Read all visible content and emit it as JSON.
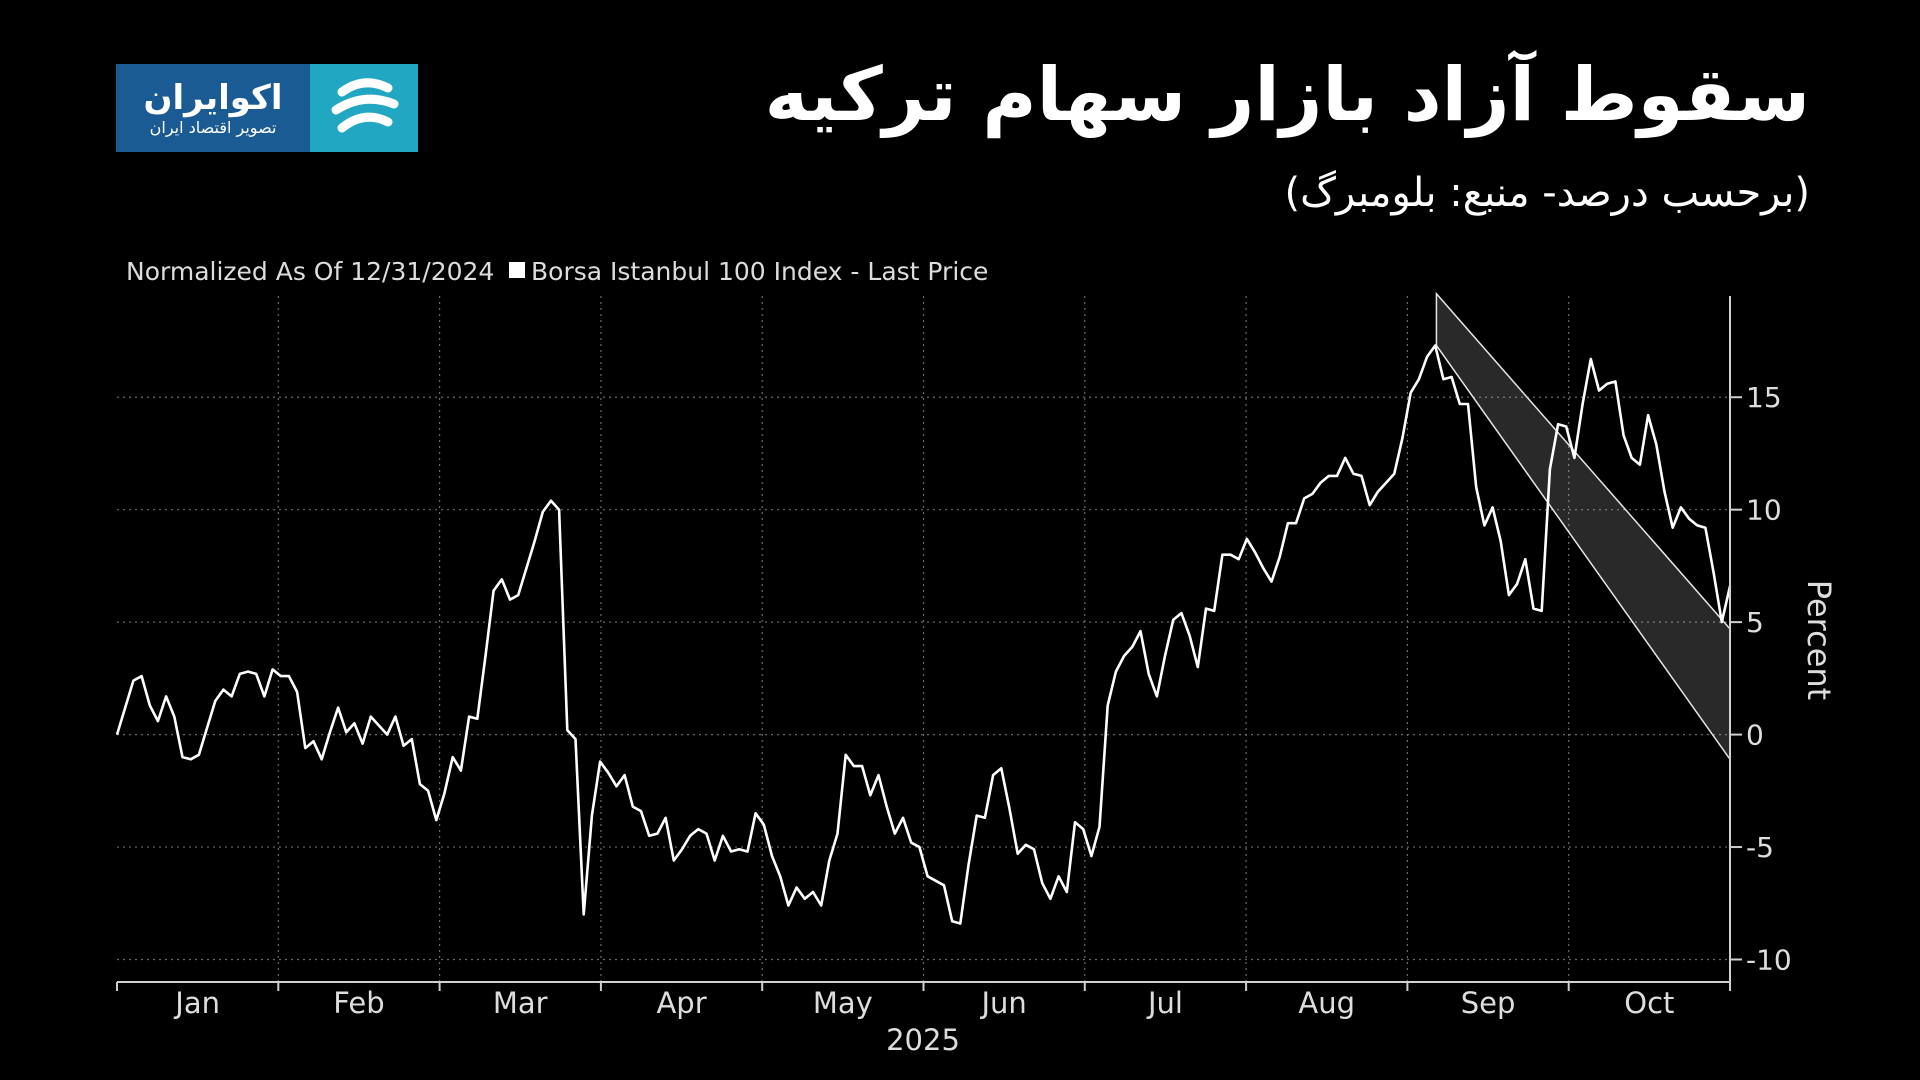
{
  "header": {
    "title": "سقوط آزاد بازار سهام ترکیه",
    "subtitle": "(برحسب درصد- منبع: بلومبرگ)"
  },
  "logo": {
    "name": "اکوایران",
    "tagline": "تصویر اقتصاد ایران",
    "icon": "ekoiran-logo-icon",
    "colors": {
      "text_bg": "#1a5b93",
      "mark_bg": "#21a7c1"
    }
  },
  "chart_data": {
    "type": "line",
    "title": "Normalized As Of 12/31/2024",
    "legend": "Borsa Istanbul 100 Index - Last Price",
    "ylabel": "Percent",
    "xlabel": "2025",
    "ylim": [
      -11,
      19.5
    ],
    "yticks": [
      15,
      10,
      5,
      0,
      -5,
      -10
    ],
    "ytick_labels": [
      "15",
      "10",
      "5",
      "0",
      "-5",
      "-10"
    ],
    "months": [
      "Jan",
      "Feb",
      "Mar",
      "Apr",
      "May",
      "Jun",
      "Jul",
      "Aug",
      "Sep",
      "Oct"
    ],
    "grid": true,
    "line_color": "#ffffff",
    "series": [
      {
        "values": [
          0.0,
          1.2,
          2.4,
          2.6,
          1.3,
          0.6,
          1.7,
          0.8,
          -1.0,
          -1.1,
          -0.9,
          0.3,
          1.5,
          2.0,
          1.7,
          2.7,
          2.8,
          2.7,
          1.7,
          2.9,
          2.6,
          2.6,
          1.9,
          -0.6,
          -0.3,
          -1.1,
          0.1,
          1.2,
          0.1,
          0.5,
          -0.4,
          0.8,
          0.4,
          0.0,
          0.8,
          -0.5,
          -0.2,
          -2.2,
          -2.5,
          -3.8,
          -2.6,
          -1.0,
          -1.6,
          0.8,
          0.7,
          3.5,
          6.4,
          6.9,
          6.0,
          6.2,
          7.4,
          8.6,
          9.9,
          10.4,
          10.0,
          0.2,
          -0.2,
          -8.0,
          -3.6,
          -1.2,
          -1.7,
          -2.3,
          -1.8,
          -3.2,
          -3.4,
          -4.5,
          -4.4,
          -3.7,
          -5.6,
          -5.1,
          -4.5,
          -4.2,
          -4.4,
          -5.6,
          -4.5,
          -5.2,
          -5.1,
          -5.2,
          -3.5,
          -4.0,
          -5.4,
          -6.3,
          -7.6,
          -6.8,
          -7.3,
          -7.0,
          -7.6,
          -5.6,
          -4.4,
          -0.9,
          -1.4,
          -1.4,
          -2.7,
          -1.8,
          -3.2,
          -4.4,
          -3.7,
          -4.8,
          -5.0,
          -6.3,
          -6.5,
          -6.7,
          -8.3,
          -8.4,
          -5.8,
          -3.6,
          -3.7,
          -1.8,
          -1.5,
          -3.3,
          -5.3,
          -4.9,
          -5.1,
          -6.6,
          -7.3,
          -6.3,
          -7.0,
          -3.9,
          -4.2,
          -5.4,
          -4.1,
          1.3,
          2.8,
          3.5,
          3.9,
          4.6,
          2.7,
          1.7,
          3.5,
          5.1,
          5.4,
          4.4,
          3.0,
          5.6,
          5.5,
          8.0,
          8.0,
          7.8,
          8.7,
          8.1,
          7.4,
          6.8,
          7.9,
          9.4,
          9.4,
          10.5,
          10.7,
          11.2,
          11.5,
          11.5,
          12.3,
          11.6,
          11.5,
          10.2,
          10.8,
          11.2,
          11.6,
          13.2,
          15.2,
          15.8,
          16.8,
          17.3,
          15.8,
          15.9,
          14.7,
          14.7,
          11.0,
          9.3,
          10.1,
          8.6,
          6.2,
          6.7,
          7.8,
          5.6,
          5.5,
          11.8,
          13.8,
          13.7,
          12.3,
          14.7,
          16.7,
          15.3,
          15.6,
          15.7,
          13.3,
          12.3,
          12.0,
          14.2,
          12.9,
          10.8,
          9.2,
          10.1,
          9.6,
          9.3,
          9.2,
          7.2,
          5.0,
          6.6
        ]
      }
    ],
    "channel": {
      "top_start": 19.6,
      "top_end": 4.7,
      "bottom_start": 17.3,
      "bottom_end": -1.1
    }
  }
}
